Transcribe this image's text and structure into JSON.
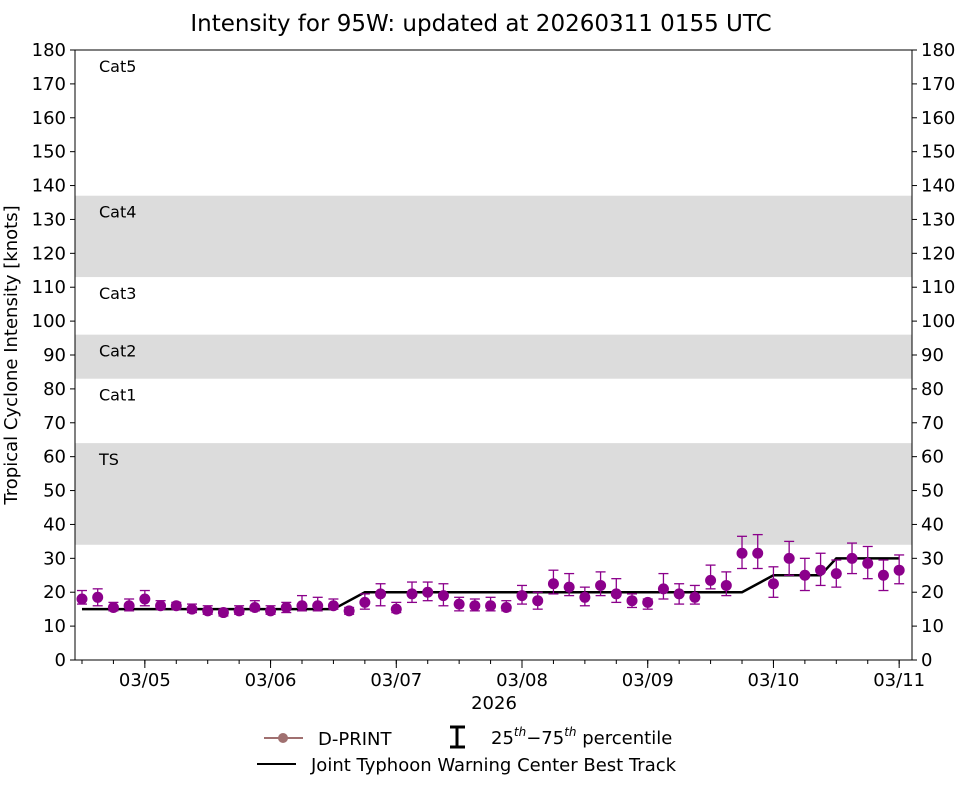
{
  "chart_data": {
    "type": "scatter",
    "title": "Intensity for 95W: updated at 20260311 0155 UTC",
    "ylabel": "Tropical Cyclone Intensity [knots]",
    "xlabel": "2026",
    "ylim": [
      0,
      180
    ],
    "yticks": [
      0,
      10,
      20,
      30,
      40,
      50,
      60,
      70,
      80,
      90,
      100,
      110,
      120,
      130,
      140,
      150,
      160,
      170,
      180
    ],
    "xlim": [
      "2026-03-04 10:40",
      "2026-03-11 02:27"
    ],
    "xticks": [
      {
        "t": "2026-03-05 00:00",
        "label": "03/05"
      },
      {
        "t": "2026-03-06 00:00",
        "label": "03/06"
      },
      {
        "t": "2026-03-07 00:00",
        "label": "03/07"
      },
      {
        "t": "2026-03-08 00:00",
        "label": "03/08"
      },
      {
        "t": "2026-03-09 00:00",
        "label": "03/09"
      },
      {
        "t": "2026-03-10 00:00",
        "label": "03/10"
      },
      {
        "t": "2026-03-11 00:00",
        "label": "03/11"
      }
    ],
    "bands": [
      {
        "label": "TS",
        "lo": 34,
        "hi": 64,
        "shaded": true
      },
      {
        "label": "Cat1",
        "lo": 64,
        "hi": 83,
        "shaded": false
      },
      {
        "label": "Cat2",
        "lo": 83,
        "hi": 96,
        "shaded": true
      },
      {
        "label": "Cat3",
        "lo": 96,
        "hi": 113,
        "shaded": false
      },
      {
        "label": "Cat4",
        "lo": 113,
        "hi": 137,
        "shaded": true
      },
      {
        "label": "Cat5",
        "lo": 137,
        "hi": 180,
        "shaded": false
      }
    ],
    "colors": {
      "dprint": "#8b008b",
      "legend_marker": "#a07070",
      "best_track": "#000000",
      "band": "#dcdcdc"
    },
    "series": [
      {
        "name": "D-PRINT",
        "start": "2026-03-04 12:00",
        "interval_hours": 3,
        "values": [
          18,
          18.5,
          15.5,
          16,
          18,
          16,
          16,
          15,
          14.5,
          14,
          14.5,
          15.5,
          14.5,
          15.5,
          16,
          16,
          16,
          14.5,
          17,
          19.5,
          15,
          19.5,
          20,
          19,
          16.5,
          16,
          16,
          15.5,
          19,
          17.5,
          22.5,
          21.5,
          18.5,
          22,
          19.5,
          17.5,
          17,
          21,
          19.5,
          18.5,
          23.5,
          22,
          31.5,
          31.5,
          22.5,
          30,
          25,
          26.5,
          25.5,
          30,
          28.5,
          25,
          26.5
        ],
        "p25": [
          16.5,
          16,
          14.5,
          14.5,
          16,
          15,
          15,
          14,
          13.5,
          13,
          13.5,
          14.5,
          13.5,
          14,
          14.5,
          14.5,
          15,
          13.5,
          15,
          16,
          14,
          17,
          17.5,
          16,
          14.5,
          14.5,
          14.5,
          14.5,
          16.5,
          15,
          19.5,
          19,
          16,
          19,
          17,
          15.5,
          15,
          18,
          16.5,
          16.5,
          21,
          19,
          27,
          27,
          18.5,
          25,
          20.5,
          22,
          21.5,
          25.5,
          24,
          20.5,
          22.5
        ],
        "p75": [
          20.5,
          21,
          17,
          18,
          20.5,
          17.5,
          17,
          16.5,
          16,
          15,
          16,
          17.5,
          16,
          17,
          19,
          18.5,
          18,
          15.5,
          19.5,
          22.5,
          17,
          23,
          23,
          22.5,
          18.5,
          18,
          18.5,
          17.5,
          22,
          20,
          26.5,
          25.5,
          21.5,
          26,
          24,
          19.5,
          18,
          25.5,
          22.5,
          22,
          28,
          26,
          36.5,
          37,
          27.5,
          35,
          30,
          31.5,
          29.5,
          34.5,
          33.5,
          29.5,
          31
        ]
      },
      {
        "name": "Joint Typhoon Warning Center Best Track",
        "points": [
          [
            "2026-03-04 12:00",
            15
          ],
          [
            "2026-03-06 12:00",
            15
          ],
          [
            "2026-03-06 18:00",
            20
          ],
          [
            "2026-03-09 18:00",
            20
          ],
          [
            "2026-03-10 00:00",
            25
          ],
          [
            "2026-03-10 09:00",
            25
          ],
          [
            "2026-03-10 12:00",
            30
          ],
          [
            "2026-03-11 00:00",
            30
          ]
        ]
      }
    ],
    "legend": {
      "placement": "bottom",
      "dprint": "D-PRINT",
      "percentile": "25th−75th percentile",
      "best_track": "Joint Typhoon Warning Center Best Track"
    }
  }
}
